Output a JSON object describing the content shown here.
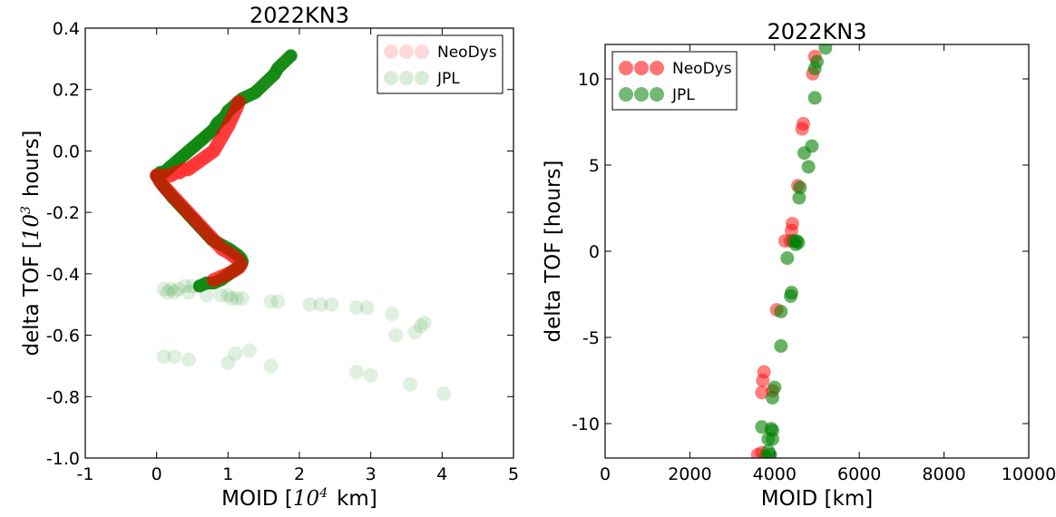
{
  "colors": {
    "neodys": "#ff0000",
    "jpl": "#008000",
    "axis": "#000000",
    "background": "#ffffff"
  },
  "chart_data": [
    {
      "type": "scatter",
      "title": "2022KN3",
      "xlabel": {
        "prefix": "MOID [",
        "power": "10",
        "exp": "4",
        "suffix": "km]"
      },
      "ylabel": {
        "prefix": "delta TOF [",
        "power": "10",
        "exp": "3",
        "suffix": "hours]"
      },
      "xlim": [
        -1,
        5
      ],
      "ylim": [
        -1.0,
        0.4
      ],
      "xticks": [
        -1,
        0,
        1,
        2,
        3,
        4,
        5
      ],
      "xtick_labels": [
        "-1",
        "0",
        "1",
        "2",
        "3",
        "4",
        "5"
      ],
      "yticks": [
        -1.0,
        -0.8,
        -0.6,
        -0.4,
        -0.2,
        0.0,
        0.2,
        0.4
      ],
      "ytick_labels": [
        "-1.0",
        "-0.8",
        "-0.6",
        "-0.4",
        "-0.2",
        "0.0",
        "0.2",
        "0.4"
      ],
      "legend_position": "top-right",
      "series": [
        {
          "name": "NeoDys",
          "color_key": "neodys",
          "opacity": 0.12,
          "x": [
            1.15,
            1.12,
            1.08,
            1.04,
            1.0,
            0.95,
            0.9,
            0.85,
            0.8,
            0.74,
            0.68,
            0.62,
            0.56,
            0.5,
            0.44,
            0.38,
            0.32,
            0.26,
            0.2,
            0.14,
            0.08,
            0.03,
            0.0,
            0.05,
            0.12,
            0.2,
            0.28,
            0.36,
            0.44,
            0.52,
            0.6,
            0.68,
            0.76,
            0.84,
            0.92,
            1.0,
            1.06,
            1.12,
            1.16,
            1.18,
            1.15,
            1.08,
            1.0,
            0.9,
            0.8
          ],
          "y": [
            0.16,
            0.14,
            0.12,
            0.1,
            0.08,
            0.06,
            0.04,
            0.02,
            0.0,
            -0.01,
            -0.02,
            -0.03,
            -0.04,
            -0.05,
            -0.06,
            -0.06,
            -0.07,
            -0.07,
            -0.08,
            -0.08,
            -0.08,
            -0.08,
            -0.08,
            -0.1,
            -0.12,
            -0.14,
            -0.16,
            -0.18,
            -0.2,
            -0.22,
            -0.24,
            -0.26,
            -0.28,
            -0.3,
            -0.32,
            -0.33,
            -0.34,
            -0.35,
            -0.36,
            -0.37,
            -0.38,
            -0.39,
            -0.4,
            -0.41,
            -0.42
          ]
        },
        {
          "name": "JPL",
          "color_key": "jpl",
          "opacity": 0.12,
          "x": [
            1.88,
            1.7,
            1.65,
            1.38,
            1.2,
            1.1,
            1.0,
            0.95,
            0.9,
            0.85,
            0.8,
            0.75,
            0.7,
            0.65,
            0.6,
            0.55,
            0.5,
            0.45,
            0.4,
            0.35,
            0.3,
            0.25,
            0.2,
            0.15,
            0.1,
            0.05,
            0.02,
            0.0,
            0.03,
            0.08,
            0.15,
            0.22,
            0.3,
            0.38,
            0.46,
            0.54,
            0.62,
            0.7,
            0.78,
            0.86,
            0.94,
            1.02,
            1.08,
            1.14,
            1.18,
            1.2,
            1.18,
            1.14,
            1.08,
            1.02,
            0.96,
            0.9,
            0.8,
            0.7,
            0.6,
            0.5,
            0.4,
            0.3,
            0.2,
            0.1,
            0.15,
            0.25,
            0.45,
            0.7,
            0.9,
            1.0,
            1.05,
            1.12,
            1.2,
            1.6,
            1.7,
            2.15,
            2.3,
            2.45,
            2.8,
            2.95,
            3.3,
            3.7,
            3.75,
            3.62,
            0.1,
            0.25,
            0.45,
            1.0,
            1.1,
            1.3,
            1.6,
            2.8,
            3.0,
            3.55,
            4.02,
            3.35
          ],
          "y": [
            0.31,
            0.27,
            0.25,
            0.19,
            0.17,
            0.15,
            0.13,
            0.11,
            0.1,
            0.09,
            0.07,
            0.06,
            0.05,
            0.04,
            0.03,
            0.02,
            0.01,
            0.0,
            -0.01,
            -0.02,
            -0.03,
            -0.04,
            -0.05,
            -0.06,
            -0.07,
            -0.07,
            -0.08,
            -0.08,
            -0.09,
            -0.11,
            -0.13,
            -0.15,
            -0.17,
            -0.19,
            -0.21,
            -0.23,
            -0.25,
            -0.27,
            -0.29,
            -0.3,
            -0.31,
            -0.32,
            -0.33,
            -0.34,
            -0.35,
            -0.36,
            -0.37,
            -0.38,
            -0.39,
            -0.4,
            -0.41,
            -0.42,
            -0.43,
            -0.43,
            -0.44,
            -0.44,
            -0.44,
            -0.45,
            -0.45,
            -0.45,
            -0.46,
            -0.46,
            -0.46,
            -0.47,
            -0.47,
            -0.47,
            -0.48,
            -0.48,
            -0.48,
            -0.49,
            -0.49,
            -0.5,
            -0.5,
            -0.5,
            -0.51,
            -0.51,
            -0.53,
            -0.57,
            -0.56,
            -0.59,
            -0.67,
            -0.67,
            -0.68,
            -0.69,
            -0.66,
            -0.65,
            -0.7,
            -0.72,
            -0.73,
            -0.76,
            -0.79,
            -0.6
          ]
        }
      ]
    },
    {
      "type": "scatter",
      "title": "2022KN3",
      "xlabel": "MOID [km]",
      "ylabel": "delta TOF [hours]",
      "xlim": [
        0,
        10000
      ],
      "ylim": [
        -12,
        12
      ],
      "xticks": [
        0,
        2000,
        4000,
        6000,
        8000,
        10000
      ],
      "xtick_labels": [
        "0",
        "2000",
        "4000",
        "6000",
        "8000",
        "10000"
      ],
      "yticks": [
        -10,
        -5,
        0,
        5,
        10
      ],
      "ytick_labels": [
        "-10",
        "-5",
        "0",
        "5",
        "10"
      ],
      "legend_position": "top-left",
      "series": [
        {
          "name": "NeoDys",
          "color_key": "neodys",
          "opacity": 0.5,
          "x": [
            4950,
            4900,
            4680,
            4650,
            4550,
            4420,
            4400,
            4380,
            4250,
            4050,
            3750,
            3720,
            3700,
            3950,
            3600,
            3700
          ],
          "y": [
            11.3,
            10.3,
            7.4,
            7.1,
            3.8,
            1.6,
            1.2,
            0.6,
            0.6,
            -3.4,
            -7.0,
            -7.5,
            -8.2,
            -8.1,
            -11.8,
            -11.7
          ]
        },
        {
          "name": "JPL",
          "color_key": "jpl",
          "opacity": 0.6,
          "x": [
            5200,
            5000,
            4950,
            4950,
            4880,
            4700,
            4800,
            4600,
            4580,
            4520,
            4500,
            4560,
            4450,
            4300,
            4400,
            4380,
            4150,
            4150,
            4000,
            3950,
            3920,
            3950,
            3950,
            3700,
            3850,
            3900,
            3800,
            3850
          ],
          "y": [
            11.8,
            11.0,
            10.6,
            8.9,
            6.1,
            5.7,
            4.9,
            3.7,
            3.1,
            0.6,
            0.4,
            0.5,
            0.6,
            -0.4,
            -2.4,
            -2.6,
            -3.5,
            -5.5,
            -7.9,
            -8.5,
            -10.3,
            -10.4,
            -10.9,
            -10.2,
            -10.9,
            -11.8,
            -11.9,
            -11.6
          ]
        }
      ]
    }
  ]
}
